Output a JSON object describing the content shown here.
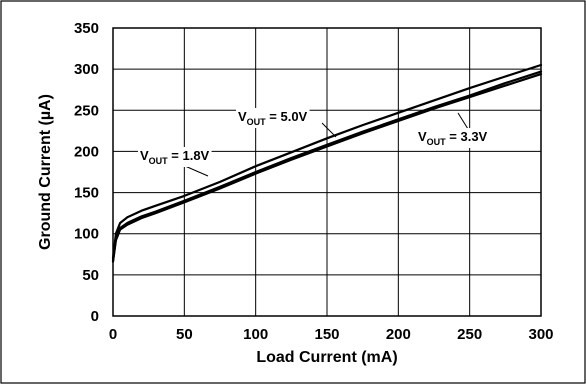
{
  "chart_data": {
    "type": "line",
    "title": "",
    "xlabel": "Load Current (mA)",
    "ylabel": "Ground Current (µA)",
    "xlim": [
      0,
      300
    ],
    "ylim": [
      0,
      350
    ],
    "xticks": [
      0,
      50,
      100,
      150,
      200,
      250,
      300
    ],
    "yticks": [
      0,
      50,
      100,
      150,
      200,
      250,
      300,
      350
    ],
    "x_tick_labels": [
      "0",
      "50",
      "100",
      "150",
      "200",
      "250",
      "300"
    ],
    "y_tick_labels": [
      "0",
      "50",
      "100",
      "150",
      "200",
      "250",
      "300",
      "350"
    ],
    "grid": true,
    "legend": "none",
    "colors": {
      "series": "#000000",
      "grid": "#000000",
      "frame": "#000000",
      "background": "#ffffff"
    },
    "series": [
      {
        "name": "VOUT = 5.0V",
        "label_main": "V",
        "label_sub": "OUT",
        "label_rest": " = 5.0V",
        "x": [
          0,
          2,
          5,
          10,
          20,
          30,
          50,
          75,
          100,
          125,
          150,
          175,
          200,
          225,
          250,
          275,
          300
        ],
        "y": [
          70,
          100,
          113,
          120,
          128,
          134,
          146,
          163,
          182,
          199,
          216,
          232,
          247,
          262,
          277,
          291,
          305
        ]
      },
      {
        "name": "VOUT = 3.3V",
        "label_main": "V",
        "label_sub": "OUT",
        "label_rest": " = 3.3V",
        "x": [
          0,
          2,
          5,
          10,
          20,
          30,
          50,
          75,
          100,
          125,
          150,
          175,
          200,
          225,
          250,
          275,
          300
        ],
        "y": [
          67,
          94,
          107,
          113,
          121,
          127,
          140,
          157,
          175,
          192,
          208,
          224,
          239,
          254,
          268,
          283,
          297
        ]
      },
      {
        "name": "VOUT = 1.8V",
        "label_main": "V",
        "label_sub": "OUT",
        "label_rest": " = 1.8V",
        "x": [
          0,
          2,
          5,
          10,
          20,
          30,
          50,
          75,
          100,
          125,
          150,
          175,
          200,
          225,
          250,
          275,
          300
        ],
        "y": [
          66,
          92,
          105,
          111,
          119,
          125,
          138,
          155,
          173,
          190,
          206,
          222,
          237,
          252,
          266,
          280,
          294
        ]
      }
    ]
  }
}
